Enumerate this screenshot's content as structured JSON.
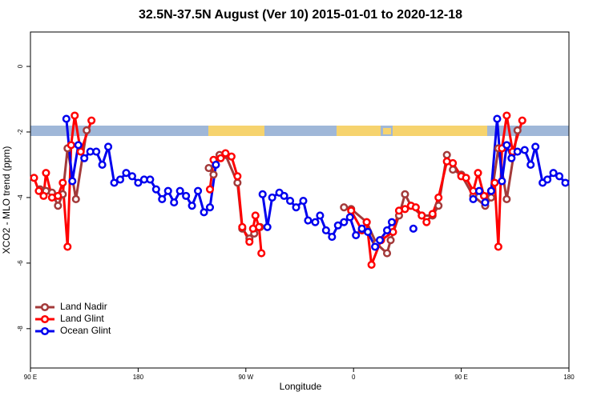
{
  "chart_data": {
    "type": "line",
    "title": "32.5N-37.5N August (Ver 10)   2015-01-01 to 2020-12-18",
    "xlabel": "Longitude",
    "ylabel": "XCO2 - MLO trend (ppm)",
    "xlim": [
      90,
      540
    ],
    "xticks": [
      {
        "value": 90,
        "label": "90 E"
      },
      {
        "value": 180,
        "label": "180"
      },
      {
        "value": 270,
        "label": "90 W"
      },
      {
        "value": 360,
        "label": "0"
      },
      {
        "value": 450,
        "label": "90 E"
      },
      {
        "value": 540,
        "label": "180"
      }
    ],
    "ylim": [
      -9.2,
      1.05
    ],
    "yticks": [
      0,
      -2,
      -4,
      -6,
      -8
    ],
    "legend": "bottomleft",
    "series": [
      {
        "name": "Land Nadir",
        "color": "#a33a3a",
        "x": [
          98,
          103,
          108,
          113,
          117,
          121,
          128,
          137,
          null,
          239,
          243,
          248,
          253,
          263,
          267,
          273,
          277,
          282,
          null,
          352,
          358,
          371,
          379,
          388,
          391,
          398,
          403,
          408,
          417,
          426,
          431,
          438,
          443,
          450,
          460,
          470,
          475,
          481,
          488,
          497
        ],
        "values": [
          -3.75,
          -3.8,
          -3.85,
          -4.25,
          -3.9,
          -2.5,
          -4.05,
          -1.95,
          null,
          -3.1,
          -3.3,
          -2.7,
          -2.7,
          -3.55,
          -4.95,
          -5.25,
          -5.1,
          -4.9,
          null,
          -4.3,
          -4.35,
          -4.75,
          -5.4,
          -5.7,
          -5.3,
          -4.55,
          -3.9,
          -4.25,
          -4.55,
          -4.55,
          -4.25,
          -2.7,
          -3.15,
          -3.3,
          -3.95,
          -4.25,
          -4.0,
          -2.5,
          -4.05,
          -1.95
        ]
      },
      {
        "name": "Land Glint",
        "color": "#ff0000",
        "x": [
          93,
          97,
          101,
          103,
          108,
          113,
          117,
          121,
          124,
          127,
          132,
          141,
          null,
          240,
          243,
          249,
          253,
          258,
          263,
          267,
          273,
          276,
          278,
          281,
          283,
          null,
          358,
          367,
          371,
          375,
          383,
          393,
          398,
          403,
          408,
          412,
          417,
          421,
          426,
          431,
          438,
          443,
          450,
          454,
          460,
          464,
          469,
          475,
          478,
          481,
          484,
          488,
          493,
          501
        ],
        "values": [
          -3.4,
          -3.8,
          -3.95,
          -3.25,
          -4.0,
          -3.95,
          -3.55,
          -5.5,
          -2.4,
          -1.5,
          -2.6,
          -1.65,
          null,
          -3.75,
          -2.85,
          -2.8,
          -2.65,
          -2.75,
          -3.35,
          -4.9,
          -5.35,
          -4.95,
          -4.55,
          -4.9,
          -5.7,
          null,
          -4.4,
          -5.0,
          -4.75,
          -6.05,
          -5.3,
          -5.05,
          -4.4,
          -4.35,
          -4.25,
          -4.3,
          -4.55,
          -4.75,
          -4.5,
          -4.0,
          -2.9,
          -2.95,
          -3.35,
          -3.4,
          -3.8,
          -3.25,
          -3.95,
          -3.8,
          -3.55,
          -5.5,
          -2.5,
          -1.5,
          -2.6,
          -1.65
        ]
      },
      {
        "name": "Ocean Glint",
        "color": "#0000ee",
        "x": [
          120,
          125,
          130,
          135,
          140,
          145,
          150,
          155,
          160,
          165,
          170,
          175,
          180,
          185,
          190,
          195,
          200,
          205,
          210,
          215,
          220,
          225,
          230,
          235,
          240,
          245,
          null,
          284,
          288,
          292,
          298,
          302,
          307,
          312,
          318,
          322,
          328,
          332,
          337,
          342,
          347,
          352,
          357,
          362,
          367,
          372,
          378,
          382,
          388,
          392,
          null,
          410,
          null,
          460,
          465,
          470,
          475,
          480,
          484,
          488,
          492,
          497,
          503,
          508,
          512,
          518,
          522,
          527,
          532,
          537
        ],
        "values": [
          -1.6,
          -3.5,
          -2.4,
          -2.8,
          -2.6,
          -2.6,
          -3.0,
          -2.45,
          -3.55,
          -3.45,
          -3.25,
          -3.35,
          -3.55,
          -3.45,
          -3.45,
          -3.75,
          -4.05,
          -3.8,
          -4.15,
          -3.8,
          -3.95,
          -4.25,
          -3.8,
          -4.45,
          -4.3,
          -3.0,
          null,
          -3.9,
          -4.9,
          -4.0,
          -3.85,
          -3.95,
          -4.1,
          -4.3,
          -4.1,
          -4.7,
          -4.75,
          -4.55,
          -5.0,
          -5.2,
          -4.85,
          -4.75,
          -4.6,
          -5.15,
          -4.95,
          -5.05,
          -5.5,
          -5.3,
          -5.0,
          -4.75,
          null,
          -4.95,
          null,
          -4.05,
          -3.8,
          -4.15,
          -3.8,
          -1.6,
          -3.5,
          -2.4,
          -2.8,
          -2.6,
          -2.55,
          -3.0,
          -2.45,
          -3.55,
          -3.45,
          -3.25,
          -3.35,
          -3.55
        ]
      }
    ]
  }
}
